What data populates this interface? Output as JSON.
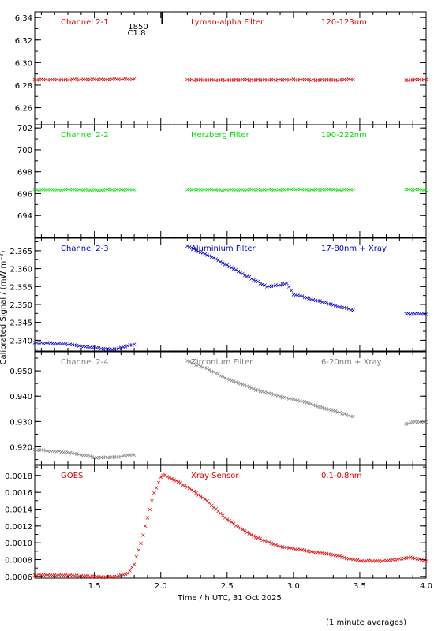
{
  "chart_data": {
    "type": "scatter",
    "xlabel": "Time / h UTC, 31 Oct 2025",
    "ylabel": "Calibrated Signal / (mW m⁻²)",
    "note": "(1 minute averages)",
    "xlim": [
      1.05,
      4.0
    ],
    "xticks": [
      "1.5",
      "2.0",
      "2.5",
      "3.0",
      "3.5",
      "4.0"
    ],
    "panels": [
      {
        "name": "Channel 2-1",
        "filter": "Lyman-alpha Filter",
        "band": "120-123nm",
        "color": "#e00000",
        "ylim": [
          6.245,
          6.345
        ],
        "yticks": [
          "6.26",
          "6.28",
          "6.30",
          "6.32",
          "6.34"
        ],
        "flare": {
          "time": 2.01,
          "label1": "1850",
          "label2": "C1.8"
        },
        "segments": [
          {
            "x": [
              1.05,
              1.8
            ],
            "y": [
              6.285,
              6.2855
            ]
          },
          {
            "x": [
              2.2,
              3.45
            ],
            "y": [
              6.285,
              6.285
            ]
          },
          {
            "x": [
              3.85,
              4.0
            ],
            "y": [
              6.285,
              6.285
            ]
          }
        ]
      },
      {
        "name": "Channel 2-2",
        "filter": "Herzberg Filter",
        "band": "190-222nm",
        "color": "#00e000",
        "ylim": [
          692.0,
          702.3
        ],
        "yticks": [
          "694",
          "696",
          "698",
          "700",
          "702"
        ],
        "segments": [
          {
            "x": [
              1.05,
              1.8
            ],
            "y": [
              696.4,
              696.4
            ]
          },
          {
            "x": [
              2.2,
              3.45
            ],
            "y": [
              696.4,
              696.4
            ]
          },
          {
            "x": [
              3.85,
              4.0
            ],
            "y": [
              696.4,
              696.4
            ]
          }
        ]
      },
      {
        "name": "Channel 2-3",
        "filter": "Aluminium Filter",
        "band": "17-80nm + Xray",
        "color": "#0000d0",
        "ylim": [
          2.337,
          2.3685
        ],
        "yticks": [
          "2.340",
          "2.345",
          "2.350",
          "2.355",
          "2.360",
          "2.365"
        ],
        "segments": [
          {
            "x": [
              1.05,
              1.3,
              1.5,
              1.65,
              1.8
            ],
            "y": [
              2.3395,
              2.339,
              2.338,
              2.3375,
              2.339
            ]
          },
          {
            "x": [
              2.2,
              2.4,
              2.6,
              2.8,
              2.95,
              3.0,
              3.2,
              3.45
            ],
            "y": [
              2.3665,
              2.363,
              2.359,
              2.355,
              2.356,
              2.353,
              2.351,
              2.3485
            ]
          },
          {
            "x": [
              3.85,
              4.0
            ],
            "y": [
              2.3475,
              2.3475
            ]
          }
        ]
      },
      {
        "name": "Channel 2-4",
        "filter": "Zirconium Filter",
        "band": "6-20nm + Xray",
        "color": "#808080",
        "ylim": [
          0.913,
          0.9575
        ],
        "yticks": [
          "0.920",
          "0.930",
          "0.940",
          "0.950"
        ],
        "segments": [
          {
            "x": [
              1.05,
              1.3,
              1.5,
              1.65,
              1.8
            ],
            "y": [
              0.919,
              0.918,
              0.916,
              0.916,
              0.917
            ]
          },
          {
            "x": [
              2.2,
              2.35,
              2.5,
              2.7,
              2.9,
              3.0,
              3.2,
              3.45
            ],
            "y": [
              0.954,
              0.951,
              0.947,
              0.943,
              0.94,
              0.939,
              0.936,
              0.932
            ]
          },
          {
            "x": [
              3.85,
              3.9,
              4.0
            ],
            "y": [
              0.929,
              0.93,
              0.93
            ]
          }
        ]
      },
      {
        "name": "GOES",
        "filter": "Xray Sensor",
        "band": "0.1-0.8nm",
        "color": "#e00000",
        "ylim": [
          0.00058,
          0.00192
        ],
        "yticks": [
          "0.0006",
          "0.0008",
          "0.0010",
          "0.0012",
          "0.0014",
          "0.0016",
          "0.0018"
        ],
        "segments": [
          {
            "x": [
              1.05,
              1.3,
              1.5,
              1.65,
              1.75,
              1.8,
              1.85,
              1.9,
              1.95,
              2.0,
              2.03,
              2.1,
              2.2,
              2.35,
              2.5,
              2.7,
              2.9,
              3.1,
              3.3,
              3.5,
              3.7,
              3.9,
              4.0
            ],
            "y": [
              0.00062,
              0.00062,
              0.0006,
              0.0006,
              0.00064,
              0.00075,
              0.001,
              0.0013,
              0.0016,
              0.00178,
              0.00181,
              0.00175,
              0.00167,
              0.0015,
              0.00128,
              0.00108,
              0.00096,
              0.00091,
              0.00086,
              0.00079,
              0.00079,
              0.00083,
              0.00079
            ]
          }
        ]
      }
    ]
  }
}
